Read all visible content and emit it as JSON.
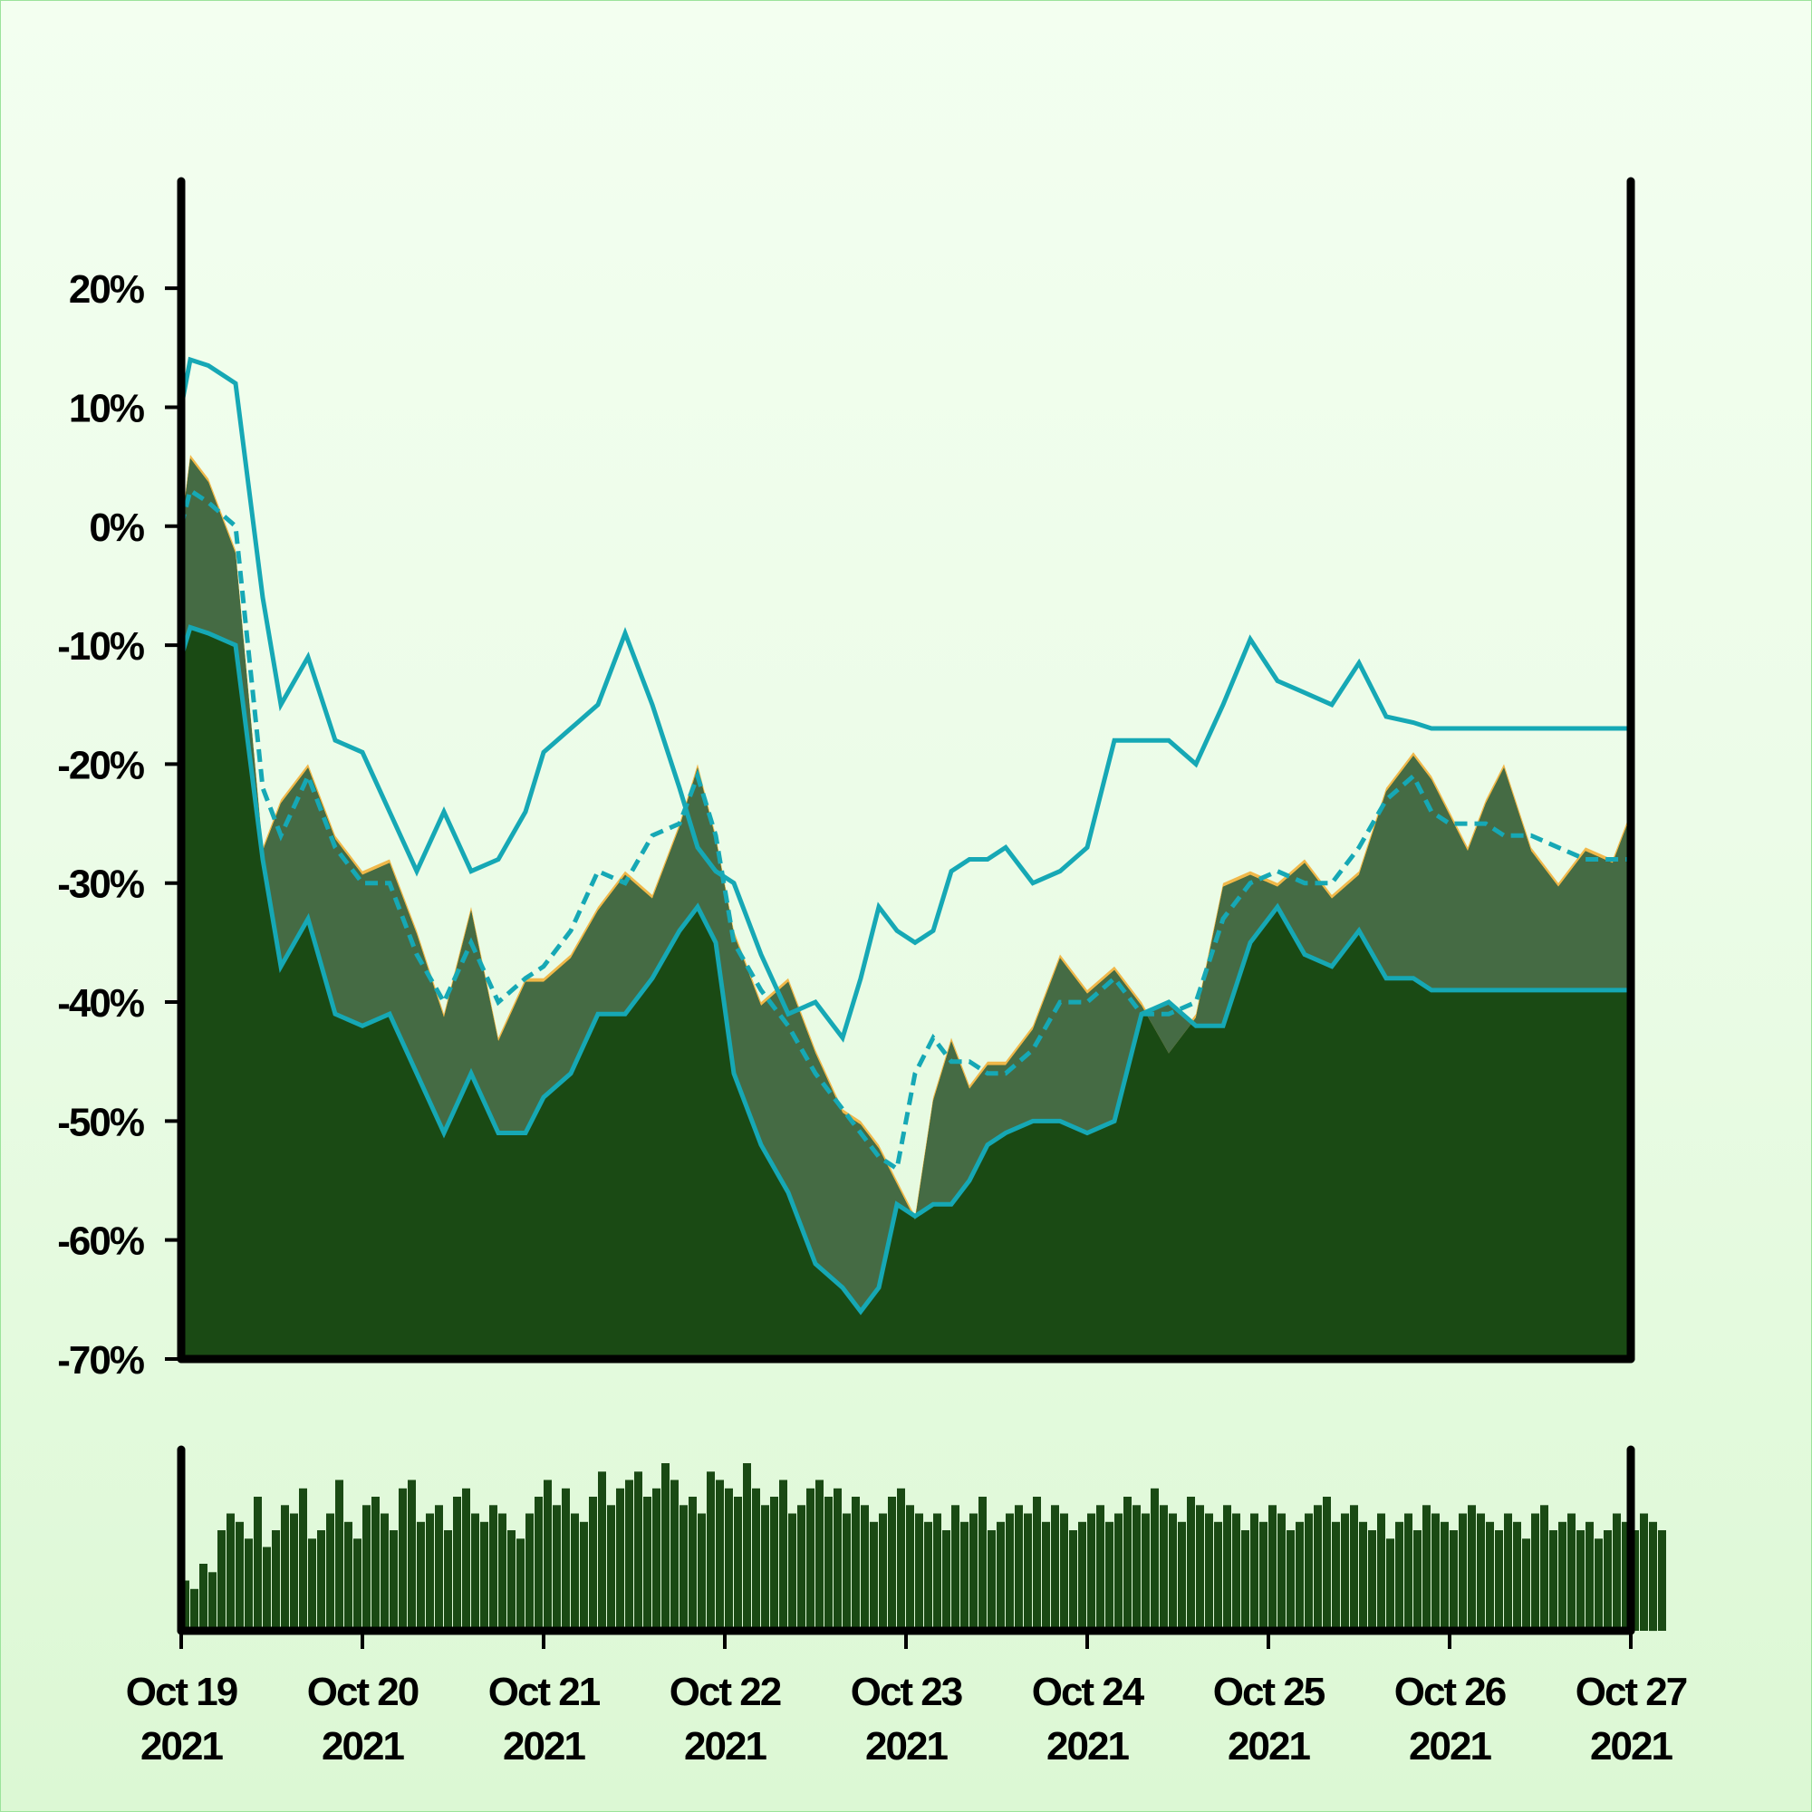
{
  "chart_data": {
    "type": "area",
    "title": "",
    "xlabel": "",
    "ylabel": "",
    "y_ticks": [
      "20%",
      "10%",
      "0%",
      "-10%",
      "-20%",
      "-30%",
      "-40%",
      "-50%",
      "-60%",
      "-70%"
    ],
    "y_tick_values": [
      20,
      10,
      0,
      -10,
      -20,
      -30,
      -40,
      -50,
      -60,
      -70
    ],
    "ylim": [
      -70,
      29
    ],
    "x_ticks": [
      {
        "day": "Oct 19",
        "year": "2021"
      },
      {
        "day": "Oct 20",
        "year": "2021"
      },
      {
        "day": "Oct 21",
        "year": "2021"
      },
      {
        "day": "Oct 22",
        "year": "2021"
      },
      {
        "day": "Oct 23",
        "year": "2021"
      },
      {
        "day": "Oct 24",
        "year": "2021"
      },
      {
        "day": "Oct 25",
        "year": "2021"
      },
      {
        "day": "Oct 26",
        "year": "2021"
      },
      {
        "day": "Oct 27",
        "year": "2021"
      }
    ],
    "xlim": [
      "2021-10-19",
      "2021-10-27"
    ],
    "grid": false,
    "legend": "none",
    "colors": {
      "price_fill": "#1a4a14",
      "price_line": "#f0b84a",
      "band_fill": "#456b44",
      "band_line": "#16a8b5",
      "volume": "#1a4a14",
      "axis": "#000000"
    },
    "series": [
      {
        "role": "price",
        "x_days": [
          0,
          0.05,
          0.15,
          0.3,
          0.45,
          0.55,
          0.7,
          0.85,
          1.0,
          1.15,
          1.3,
          1.45,
          1.6,
          1.75,
          1.9,
          2.0,
          2.15,
          2.3,
          2.45,
          2.6,
          2.75,
          2.85,
          2.95,
          3.05,
          3.2,
          3.35,
          3.5,
          3.65,
          3.75,
          3.85,
          3.95,
          4.05,
          4.15,
          4.25,
          4.35,
          4.45,
          4.55,
          4.7,
          4.85,
          5.0,
          5.15,
          5.3,
          5.45,
          5.6,
          5.75,
          5.9,
          6.05,
          6.2,
          6.35,
          6.5,
          6.65,
          6.8,
          6.9,
          7.0,
          7.1,
          7.2,
          7.3,
          7.45,
          7.6,
          7.75,
          7.9,
          8.0
        ],
        "values": [
          0,
          6,
          4,
          -2,
          -27,
          -23,
          -20,
          -26,
          -29,
          -28,
          -34,
          -41,
          -32,
          -43,
          -38,
          -38,
          -36,
          -32,
          -29,
          -31,
          -25,
          -20,
          -26,
          -34,
          -40,
          -38,
          -44,
          -49,
          -50,
          -52,
          -55,
          -58,
          -48,
          -43,
          -47,
          -45,
          -45,
          -42,
          -36,
          -39,
          -37,
          -40,
          -44,
          -41,
          -30,
          -29,
          -30,
          -28,
          -31,
          -29,
          -22,
          -19,
          -21,
          -24,
          -27,
          -23,
          -20,
          -27,
          -30,
          -27,
          -28,
          -24
        ]
      },
      {
        "role": "band-upper",
        "x_days": [
          0,
          0.05,
          0.15,
          0.3,
          0.45,
          0.55,
          0.7,
          0.85,
          1.0,
          1.15,
          1.3,
          1.45,
          1.6,
          1.75,
          1.9,
          2.0,
          2.15,
          2.3,
          2.45,
          2.6,
          2.75,
          2.85,
          2.95,
          3.05,
          3.2,
          3.35,
          3.5,
          3.65,
          3.75,
          3.85,
          3.95,
          4.05,
          4.15,
          4.25,
          4.35,
          4.45,
          4.55,
          4.7,
          4.85,
          5.0,
          5.15,
          5.3,
          5.45,
          5.6,
          5.75,
          5.9,
          6.05,
          6.2,
          6.35,
          6.5,
          6.65,
          6.8,
          6.9,
          7.0,
          7.1,
          7.2,
          7.3,
          7.45,
          7.6,
          7.75,
          7.9,
          8.0
        ],
        "values": [
          10,
          14,
          13.5,
          12,
          -6,
          -15,
          -11,
          -18,
          -19,
          -24,
          -29,
          -24,
          -29,
          -28,
          -24,
          -19,
          -17,
          -15,
          -9,
          -15,
          -22,
          -27,
          -29,
          -30,
          -36,
          -41,
          -40,
          -43,
          -38,
          -32,
          -34,
          -35,
          -34,
          -29,
          -28,
          -28,
          -27,
          -30,
          -29,
          -27,
          -18,
          -18,
          -18,
          -20,
          -15,
          -9.5,
          -13,
          -14,
          -15,
          -11.5,
          -16,
          -16.5,
          -17,
          -17,
          -17,
          -17,
          -17,
          -17,
          -17,
          -17,
          -17,
          -17
        ]
      },
      {
        "role": "band-middle",
        "x_days": [
          0,
          0.05,
          0.15,
          0.3,
          0.45,
          0.55,
          0.7,
          0.85,
          1.0,
          1.15,
          1.3,
          1.45,
          1.6,
          1.75,
          1.9,
          2.0,
          2.15,
          2.3,
          2.45,
          2.6,
          2.75,
          2.85,
          2.95,
          3.05,
          3.2,
          3.35,
          3.5,
          3.65,
          3.75,
          3.85,
          3.95,
          4.05,
          4.15,
          4.25,
          4.35,
          4.45,
          4.55,
          4.7,
          4.85,
          5.0,
          5.15,
          5.3,
          5.45,
          5.6,
          5.75,
          5.9,
          6.05,
          6.2,
          6.35,
          6.5,
          6.65,
          6.8,
          6.9,
          7.0,
          7.1,
          7.2,
          7.3,
          7.45,
          7.6,
          7.75,
          7.9,
          8.0
        ],
        "values": [
          0,
          3,
          2,
          0,
          -22,
          -26,
          -21,
          -27,
          -30,
          -30,
          -36,
          -40,
          -35,
          -40,
          -38,
          -37,
          -34,
          -29,
          -30,
          -26,
          -25,
          -21,
          -26,
          -35,
          -39,
          -42,
          -46,
          -49,
          -51,
          -53,
          -54,
          -46,
          -43,
          -45,
          -45,
          -46,
          -46,
          -44,
          -40,
          -40,
          -38,
          -41,
          -41,
          -40,
          -33,
          -30,
          -29,
          -30,
          -30,
          -27,
          -23,
          -21,
          -24,
          -25,
          -25,
          -25,
          -26,
          -26,
          -27,
          -28,
          -28,
          -28
        ]
      },
      {
        "role": "band-lower",
        "x_days": [
          0,
          0.05,
          0.15,
          0.3,
          0.45,
          0.55,
          0.7,
          0.85,
          1.0,
          1.15,
          1.3,
          1.45,
          1.6,
          1.75,
          1.9,
          2.0,
          2.15,
          2.3,
          2.45,
          2.6,
          2.75,
          2.85,
          2.95,
          3.05,
          3.2,
          3.35,
          3.5,
          3.65,
          3.75,
          3.85,
          3.95,
          4.05,
          4.15,
          4.25,
          4.35,
          4.45,
          4.55,
          4.7,
          4.85,
          5.0,
          5.15,
          5.3,
          5.45,
          5.6,
          5.75,
          5.9,
          6.05,
          6.2,
          6.35,
          6.5,
          6.65,
          6.8,
          6.9,
          7.0,
          7.1,
          7.2,
          7.3,
          7.45,
          7.6,
          7.75,
          7.9,
          8.0
        ],
        "values": [
          -11,
          -8.5,
          -9,
          -10,
          -28,
          -37,
          -33,
          -41,
          -42,
          -41,
          -46,
          -51,
          -46,
          -51,
          -51,
          -48,
          -46,
          -41,
          -41,
          -38,
          -34,
          -32,
          -35,
          -46,
          -52,
          -56,
          -62,
          -64,
          -66,
          -64,
          -57,
          -58,
          -57,
          -57,
          -55,
          -52,
          -51,
          -50,
          -50,
          -51,
          -50,
          -41,
          -40,
          -42,
          -42,
          -35,
          -32,
          -36,
          -37,
          -34,
          -38,
          -38,
          -39,
          -39,
          -39,
          -39,
          -39,
          -39,
          -39,
          -39,
          -39,
          -39
        ]
      }
    ],
    "volume": {
      "x_days_step": 0.05,
      "values": [
        0.3,
        0.25,
        0.4,
        0.35,
        0.6,
        0.7,
        0.65,
        0.55,
        0.8,
        0.5,
        0.6,
        0.75,
        0.7,
        0.85,
        0.55,
        0.6,
        0.7,
        0.9,
        0.65,
        0.55,
        0.75,
        0.8,
        0.7,
        0.6,
        0.85,
        0.9,
        0.65,
        0.7,
        0.75,
        0.6,
        0.8,
        0.85,
        0.7,
        0.65,
        0.75,
        0.7,
        0.6,
        0.55,
        0.7,
        0.8,
        0.9,
        0.75,
        0.85,
        0.7,
        0.65,
        0.8,
        0.95,
        0.75,
        0.85,
        0.9,
        0.95,
        0.8,
        0.85,
        1.0,
        0.9,
        0.75,
        0.8,
        0.7,
        0.95,
        0.9,
        0.85,
        0.8,
        1.0,
        0.85,
        0.75,
        0.8,
        0.9,
        0.7,
        0.75,
        0.85,
        0.9,
        0.8,
        0.85,
        0.7,
        0.8,
        0.75,
        0.65,
        0.7,
        0.8,
        0.85,
        0.75,
        0.7,
        0.65,
        0.7,
        0.6,
        0.75,
        0.65,
        0.7,
        0.8,
        0.6,
        0.65,
        0.7,
        0.75,
        0.7,
        0.8,
        0.65,
        0.75,
        0.7,
        0.6,
        0.65,
        0.7,
        0.75,
        0.65,
        0.7,
        0.8,
        0.75,
        0.7,
        0.85,
        0.75,
        0.7,
        0.65,
        0.8,
        0.75,
        0.7,
        0.65,
        0.75,
        0.7,
        0.6,
        0.7,
        0.65,
        0.75,
        0.7,
        0.6,
        0.65,
        0.7,
        0.75,
        0.8,
        0.65,
        0.7,
        0.75,
        0.65,
        0.6,
        0.7,
        0.55,
        0.65,
        0.7,
        0.6,
        0.75,
        0.7,
        0.65,
        0.6,
        0.7,
        0.75,
        0.7,
        0.65,
        0.6,
        0.7,
        0.65,
        0.55,
        0.7,
        0.75,
        0.6,
        0.65,
        0.7,
        0.6,
        0.65,
        0.55,
        0.6,
        0.7,
        0.65,
        0.6,
        0.7,
        0.65,
        0.6
      ]
    }
  }
}
